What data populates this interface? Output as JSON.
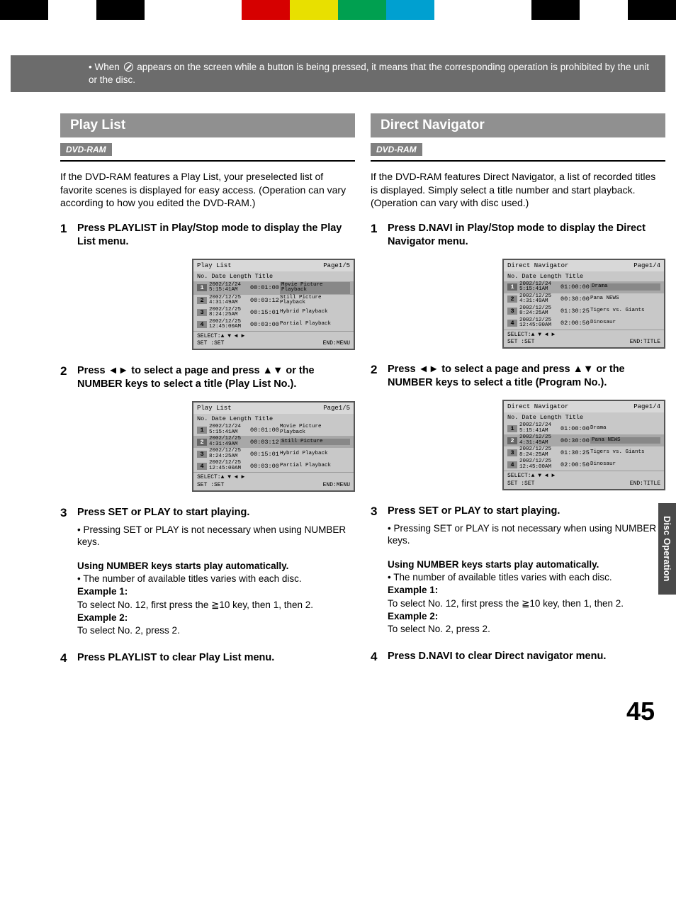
{
  "colorbar_colors": [
    "#000000",
    "#ffffff",
    "#000000",
    "#ffffff",
    "#ffffff",
    "#d60000",
    "#e8e000",
    "#00a050",
    "#00a0d0",
    "#ffffff",
    "#ffffff",
    "#000000",
    "#ffffff",
    "#000000"
  ],
  "notice": {
    "prefix": "• When ",
    "suffix": " appears on the screen while a button is being pressed, it means that the corresponding operation is prohibited by the unit or the disc."
  },
  "side_tab": "Disc Operation",
  "page_number": "45",
  "left": {
    "title": "Play List",
    "badge": "DVD-RAM",
    "intro": "If the DVD-RAM features a Play List, your preselected list of favorite scenes is displayed for easy access. (Operation can vary according to how you edited the DVD-RAM.)",
    "steps": [
      {
        "num": "1",
        "text": "Press PLAYLIST in Play/Stop mode to display the Play List menu."
      },
      {
        "num": "2",
        "text": "Press ◄► to select a page and press ▲▼ or the NUMBER keys to select a title (Play List No.)."
      },
      {
        "num": "3",
        "text": "Press SET or PLAY to start playing.",
        "sub": "• Pressing SET or PLAY is not necessary when using NUMBER keys.",
        "notes": [
          {
            "type": "heavy",
            "text": "Using NUMBER keys starts play automatically."
          },
          {
            "type": "line",
            "text": "• The number of available titles varies with each disc."
          },
          {
            "type": "heavy",
            "text": "Example 1:"
          },
          {
            "type": "line",
            "text": "To select No. 12, first press the ≧10 key, then 1, then 2."
          },
          {
            "type": "heavy",
            "text": "Example 2:"
          },
          {
            "type": "line",
            "text": "To select No. 2, press 2."
          }
        ]
      },
      {
        "num": "4",
        "text": "Press PLAYLIST to clear Play List menu."
      }
    ],
    "osd1": {
      "title": "Play List",
      "page": "Page1/5",
      "head": "No. Date   Length  Title",
      "rows": [
        {
          "n": "1",
          "date": "2002/12/24\n5:15:41AM",
          "len": "00:01:00",
          "title": "Movie Picture\nPlayback",
          "hl": true,
          "boxed": true
        },
        {
          "n": "2",
          "date": "2002/12/25\n4:31:49AM",
          "len": "00:03:12",
          "title": "Still Picture\nPlayback"
        },
        {
          "n": "3",
          "date": "2002/12/25\n8:24:25AM",
          "len": "00:15:01",
          "title": "Hybrid Playback"
        },
        {
          "n": "4",
          "date": "2002/12/25\n12:45:00AM",
          "len": "00:03:00",
          "title": "Partial Playback"
        }
      ],
      "foot1": "SELECT:▲ ▼ ◄ ►",
      "foot2a": "SET   :SET",
      "foot2b": "END:MENU"
    },
    "osd2": {
      "title": "Play List",
      "page": "Page1/5",
      "head": "No. Date  Length  Title",
      "rows": [
        {
          "n": "1",
          "date": "2002/12/24\n5:15:41AM",
          "len": "00:01:00",
          "title": "Movie Picture\nPlayback"
        },
        {
          "n": "2",
          "date": "2002/12/25\n4:31:49AM",
          "len": "00:03:12",
          "title": "Still Picture",
          "hl": true,
          "boxed": true
        },
        {
          "n": "3",
          "date": "2002/12/25\n8:24:25AM",
          "len": "00:15:01",
          "title": "Hybrid Playback"
        },
        {
          "n": "4",
          "date": "2002/12/25\n12:45:00AM",
          "len": "00:03:00",
          "title": "Partial Playback"
        }
      ],
      "foot1": "SELECT:▲ ▼ ◄ ►",
      "foot2a": "SET   :SET",
      "foot2b": "END:MENU"
    }
  },
  "right": {
    "title": "Direct Navigator",
    "badge": "DVD-RAM",
    "intro": "If the DVD-RAM features Direct Navigator, a list of recorded titles is displayed. Simply select a title number and start playback. (Operation can vary with disc used.)",
    "steps": [
      {
        "num": "1",
        "text": "Press D.NAVI in Play/Stop mode to display the Direct Navigator menu."
      },
      {
        "num": "2",
        "text": "Press ◄► to select a page and press ▲▼ or the NUMBER keys to select a title (Program No.)."
      },
      {
        "num": "3",
        "text": "Press SET or PLAY to start playing.",
        "sub": "• Pressing SET or PLAY is not necessary when using NUMBER keys.",
        "notes": [
          {
            "type": "heavy",
            "text": "Using NUMBER keys starts play automatically."
          },
          {
            "type": "line",
            "text": "• The number of available titles varies with each disc."
          },
          {
            "type": "heavy",
            "text": "Example 1:"
          },
          {
            "type": "line",
            "text": "To select No. 12, first press the ≧10 key, then 1, then 2."
          },
          {
            "type": "heavy",
            "text": "Example 2:"
          },
          {
            "type": "line",
            "text": "To select No. 2, press 2."
          }
        ]
      },
      {
        "num": "4",
        "text": "Press D.NAVI to clear Direct navigator menu."
      }
    ],
    "osd1": {
      "title": "Direct Navigator",
      "page": "Page1/4",
      "head": "No. Date   Length  Title",
      "rows": [
        {
          "n": "1",
          "date": "2002/12/24\n5:15:41AM",
          "len": "01:00:00",
          "title": "Drama",
          "hl": true,
          "boxed": true
        },
        {
          "n": "2",
          "date": "2002/12/25\n4:31:49AM",
          "len": "00:30:00",
          "title": "Pana NEWS"
        },
        {
          "n": "3",
          "date": "2002/12/25\n8:24:25AM",
          "len": "01:30:25",
          "title": "Tigers vs. Giants"
        },
        {
          "n": "4",
          "date": "2002/12/25\n12:45:00AM",
          "len": "02:00:50",
          "title": "Dinosaur"
        }
      ],
      "foot1": "SELECT:▲ ▼ ◄ ►",
      "foot2a": "SET   :SET",
      "foot2b": "END:TITLE"
    },
    "osd2": {
      "title": "Direct Navigator",
      "page": "Page1/4",
      "head": "No. Date  Length  Title",
      "rows": [
        {
          "n": "1",
          "date": "2002/12/24\n5:15:41AM",
          "len": "01:00:00",
          "title": "Drama"
        },
        {
          "n": "2",
          "date": "2002/12/25\n4:31:49AM",
          "len": "00:30:00",
          "title": "Pana NEWS",
          "hl": true,
          "boxed": true
        },
        {
          "n": "3",
          "date": "2002/12/25\n8:24:25AM",
          "len": "01:30:25",
          "title": "Tigers vs. Giants"
        },
        {
          "n": "4",
          "date": "2002/12/25\n12:45:00AM",
          "len": "02:00:50",
          "title": "Dinosaur"
        }
      ],
      "foot1": "SELECT:▲ ▼ ◄ ►",
      "foot2a": "SET   :SET",
      "foot2b": "END:TITLE"
    }
  }
}
